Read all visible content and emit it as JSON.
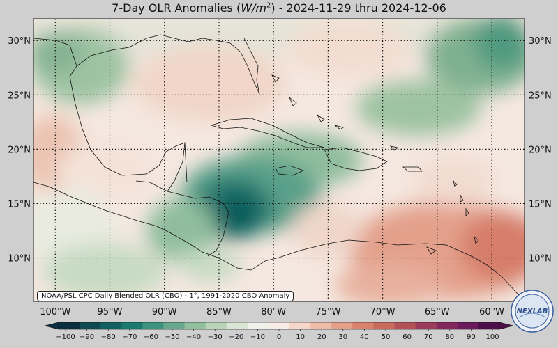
{
  "title": {
    "prefix": "7-Day OLR Anomalies (",
    "unit_base": "W/m",
    "unit_exp": "2",
    "suffix": ") - 2024-11-29 thru 2024-12-06"
  },
  "map": {
    "lon_range": [
      -102,
      -57
    ],
    "lat_range": [
      6,
      32
    ],
    "lon_ticks": [
      {
        "value": -100,
        "label": "100°W"
      },
      {
        "value": -95,
        "label": "95°W"
      },
      {
        "value": -90,
        "label": "90°W"
      },
      {
        "value": -85,
        "label": "85°W"
      },
      {
        "value": -80,
        "label": "80°W"
      },
      {
        "value": -75,
        "label": "75°W"
      },
      {
        "value": -70,
        "label": "70°W"
      },
      {
        "value": -65,
        "label": "65°W"
      },
      {
        "value": -60,
        "label": "60°W"
      }
    ],
    "lat_ticks": [
      {
        "value": 10,
        "label": "10°N"
      },
      {
        "value": 15,
        "label": "15°N"
      },
      {
        "value": 20,
        "label": "20°N"
      },
      {
        "value": 25,
        "label": "25°N"
      },
      {
        "value": 30,
        "label": "30°N"
      }
    ],
    "gridlines": "dotted"
  },
  "colorbar": {
    "ticks": [
      "−100",
      "−90",
      "−80",
      "−70",
      "−60",
      "−50",
      "−40",
      "−30",
      "−20",
      "−10",
      "0",
      "10",
      "20",
      "30",
      "40",
      "50",
      "60",
      "70",
      "80",
      "90",
      "100"
    ],
    "colors": [
      "#0c2f40",
      "#0f4a52",
      "#126060",
      "#1b7a6f",
      "#3f9180",
      "#69a88e",
      "#92bf9f",
      "#b9d4b7",
      "#d9e6d6",
      "#f0f1ea",
      "#f7ece6",
      "#f6d6c9",
      "#eebba8",
      "#e49f89",
      "#d9836e",
      "#c86a5c",
      "#b35157",
      "#9b3c5a",
      "#83285f",
      "#6b1b5c",
      "#4e1048"
    ]
  },
  "credit": "NOAA/PSL CPC Daily Blended OLR (CBO) - 1°, 1991-2020 CBO Anomaly",
  "logo": {
    "text": "NEXLAB"
  }
}
